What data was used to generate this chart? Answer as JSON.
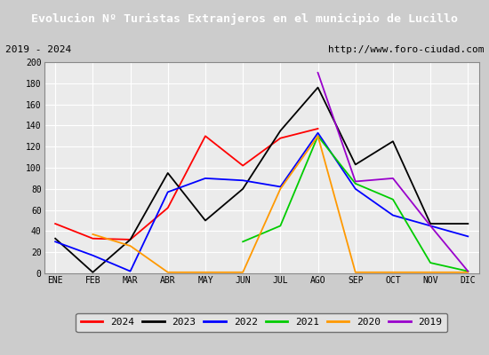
{
  "title": "Evolucion Nº Turistas Extranjeros en el municipio de Lucillo",
  "subtitle_left": "2019 - 2024",
  "subtitle_right": "http://www.foro-ciudad.com",
  "months": [
    "ENE",
    "FEB",
    "MAR",
    "ABR",
    "MAY",
    "JUN",
    "JUL",
    "AGO",
    "SEP",
    "OCT",
    "NOV",
    "DIC"
  ],
  "ylim": [
    0,
    200
  ],
  "yticks": [
    0,
    20,
    40,
    60,
    80,
    100,
    120,
    140,
    160,
    180,
    200
  ],
  "series": {
    "2024": {
      "color": "#ff0000",
      "data": [
        47,
        33,
        32,
        62,
        130,
        102,
        128,
        137,
        null,
        null,
        null,
        null
      ]
    },
    "2023": {
      "color": "#000000",
      "data": [
        33,
        1,
        32,
        95,
        50,
        80,
        135,
        176,
        103,
        125,
        47,
        47
      ]
    },
    "2022": {
      "color": "#0000ff",
      "data": [
        30,
        17,
        2,
        77,
        90,
        88,
        82,
        133,
        80,
        55,
        45,
        35
      ]
    },
    "2021": {
      "color": "#00cc00",
      "data": [
        null,
        null,
        null,
        null,
        null,
        30,
        45,
        130,
        85,
        70,
        10,
        2
      ]
    },
    "2020": {
      "color": "#ff9900",
      "data": [
        null,
        37,
        26,
        1,
        1,
        1,
        80,
        130,
        1,
        1,
        1,
        1
      ]
    },
    "2019": {
      "color": "#9900cc",
      "data": [
        null,
        null,
        null,
        null,
        null,
        null,
        null,
        190,
        87,
        90,
        45,
        2
      ]
    }
  },
  "title_bg": "#3a7ebf",
  "title_color": "#ffffff",
  "subtitle_bg": "#cccccc",
  "plot_bg": "#ebebeb",
  "grid_color": "#ffffff",
  "border_color": "#888888",
  "fig_bg": "#cccccc",
  "legend_bg": "#e8e8e8"
}
